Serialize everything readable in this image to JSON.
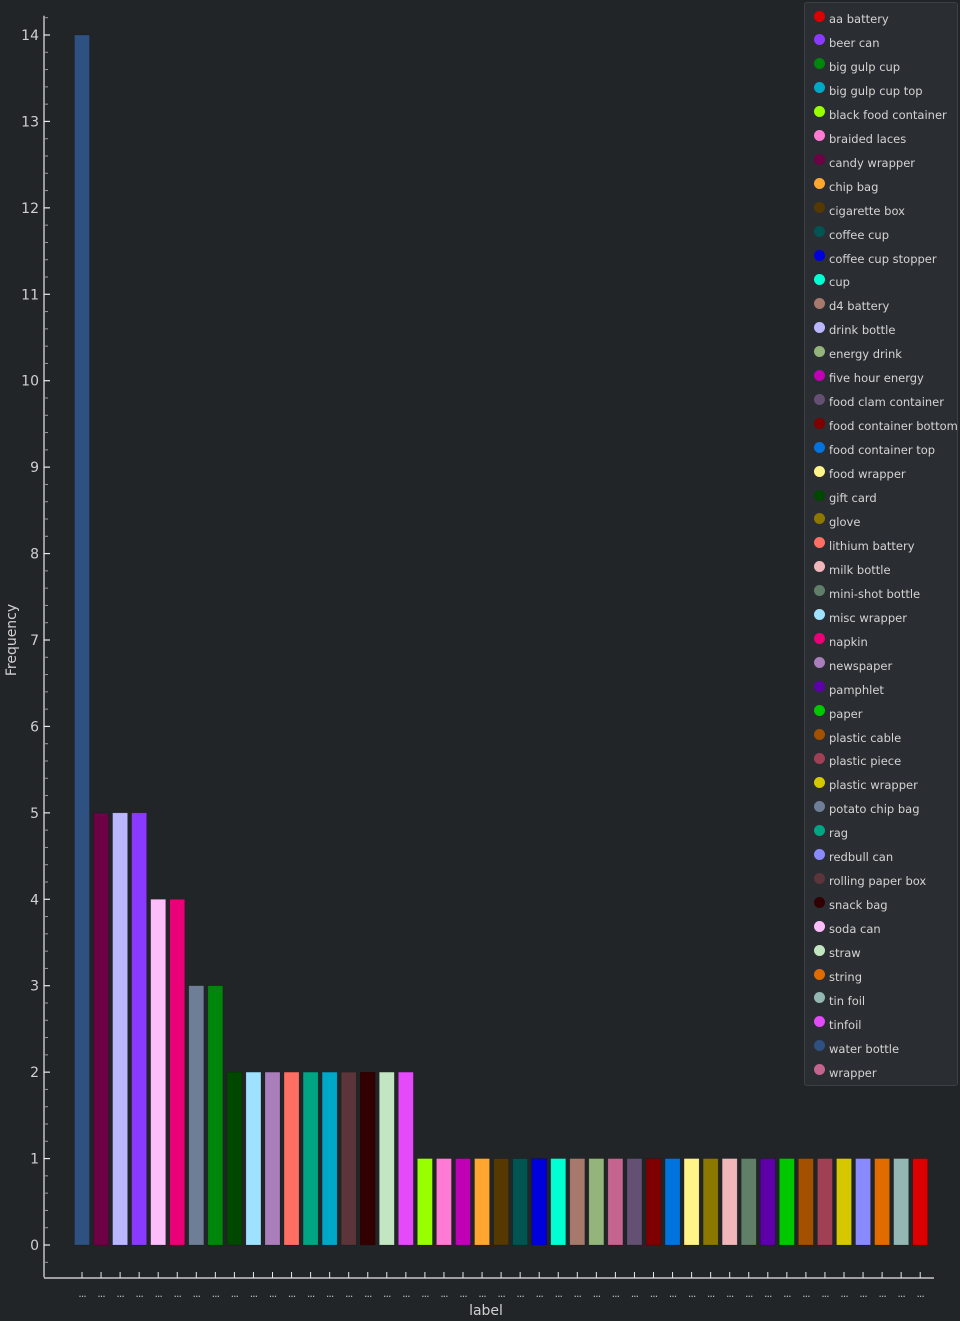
{
  "chart_data": {
    "type": "bar",
    "title": "",
    "xlabel": "label",
    "ylabel": "Frequency",
    "ylim": [
      -0.2,
      14.2
    ],
    "yticks": [
      0,
      1,
      2,
      3,
      4,
      5,
      6,
      7,
      8,
      9,
      10,
      11,
      12,
      13,
      14
    ],
    "xtick_label": "...",
    "grid": false,
    "legend_position": "top-right",
    "categories": [
      "water bottle",
      "candy wrapper",
      "drink bottle",
      "beer can",
      "soda can",
      "napkin",
      "potato chip bag",
      "big gulp cup",
      "gift card",
      "misc wrapper",
      "newspaper",
      "lithium battery",
      "rag",
      "big gulp cup top",
      "rolling paper box",
      "snack bag",
      "straw",
      "tinfoil",
      "black food container",
      "braided laces",
      "five hour energy",
      "chip bag",
      "cigarette box",
      "coffee cup",
      "coffee cup stopper",
      "cup",
      "d4 battery",
      "energy drink",
      "wrapper",
      "food clam container",
      "food container bottom",
      "food container top",
      "food wrapper",
      "glove",
      "milk bottle",
      "mini-shot bottle",
      "pamphlet",
      "paper",
      "plastic cable",
      "plastic piece",
      "plastic wrapper",
      "redbull can",
      "string",
      "tin foil",
      "aa battery"
    ],
    "values": [
      14,
      5,
      5,
      5,
      4,
      4,
      3,
      3,
      2,
      2,
      2,
      2,
      2,
      2,
      2,
      2,
      2,
      2,
      1,
      1,
      1,
      1,
      1,
      1,
      1,
      1,
      1,
      1,
      1,
      1,
      1,
      1,
      1,
      1,
      1,
      1,
      1,
      1,
      1,
      1,
      1,
      1,
      1,
      1,
      1
    ],
    "legend": [
      {
        "label": "aa battery",
        "color": "#dd0000"
      },
      {
        "label": "beer can",
        "color": "#8a3aff"
      },
      {
        "label": "big gulp cup",
        "color": "#00860b"
      },
      {
        "label": "big gulp cup top",
        "color": "#00a8c7"
      },
      {
        "label": "black food container",
        "color": "#97ff00"
      },
      {
        "label": "braided laces",
        "color": "#ff7ad3"
      },
      {
        "label": "candy wrapper",
        "color": "#6e0046"
      },
      {
        "label": "chip bag",
        "color": "#ffa630"
      },
      {
        "label": "cigarette box",
        "color": "#553900"
      },
      {
        "label": "coffee cup",
        "color": "#005553"
      },
      {
        "label": "coffee cup stopper",
        "color": "#0000dd"
      },
      {
        "label": "cup",
        "color": "#00ffd2"
      },
      {
        "label": "d4 battery",
        "color": "#a6796c"
      },
      {
        "label": "drink bottle",
        "color": "#bbb7ff"
      },
      {
        "label": "energy drink",
        "color": "#93b57b"
      },
      {
        "label": "five hour energy",
        "color": "#bf00b5"
      },
      {
        "label": "food clam container",
        "color": "#635073"
      },
      {
        "label": "food container bottom",
        "color": "#7e0000"
      },
      {
        "label": "food container top",
        "color": "#0073dc"
      },
      {
        "label": "food wrapper",
        "color": "#fff488"
      },
      {
        "label": "gift card",
        "color": "#004700"
      },
      {
        "label": "glove",
        "color": "#8c7700"
      },
      {
        "label": "lithium battery",
        "color": "#ff6e62"
      },
      {
        "label": "milk bottle",
        "color": "#f1b6b9"
      },
      {
        "label": "mini-shot bottle",
        "color": "#617f68"
      },
      {
        "label": "misc wrapper",
        "color": "#9ee2ff"
      },
      {
        "label": "napkin",
        "color": "#ea0077"
      },
      {
        "label": "newspaper",
        "color": "#a97eba"
      },
      {
        "label": "pamphlet",
        "color": "#5e00a9"
      },
      {
        "label": "paper",
        "color": "#00c800"
      },
      {
        "label": "plastic cable",
        "color": "#a35000"
      },
      {
        "label": "plastic piece",
        "color": "#a14055"
      },
      {
        "label": "plastic wrapper",
        "color": "#d6c800"
      },
      {
        "label": "potato chip bag",
        "color": "#6e7e96"
      },
      {
        "label": "rag",
        "color": "#00a584"
      },
      {
        "label": "redbull can",
        "color": "#8a8aff"
      },
      {
        "label": "rolling paper box",
        "color": "#5b353a"
      },
      {
        "label": "snack bag",
        "color": "#320000"
      },
      {
        "label": "soda can",
        "color": "#fdbcfa"
      },
      {
        "label": "straw",
        "color": "#c2e6c1"
      },
      {
        "label": "string",
        "color": "#e06c00"
      },
      {
        "label": "tin foil",
        "color": "#94b7b4"
      },
      {
        "label": "tinfoil",
        "color": "#e449fa"
      },
      {
        "label": "water bottle",
        "color": "#2e5182"
      },
      {
        "label": "wrapper",
        "color": "#c4648f"
      }
    ]
  }
}
